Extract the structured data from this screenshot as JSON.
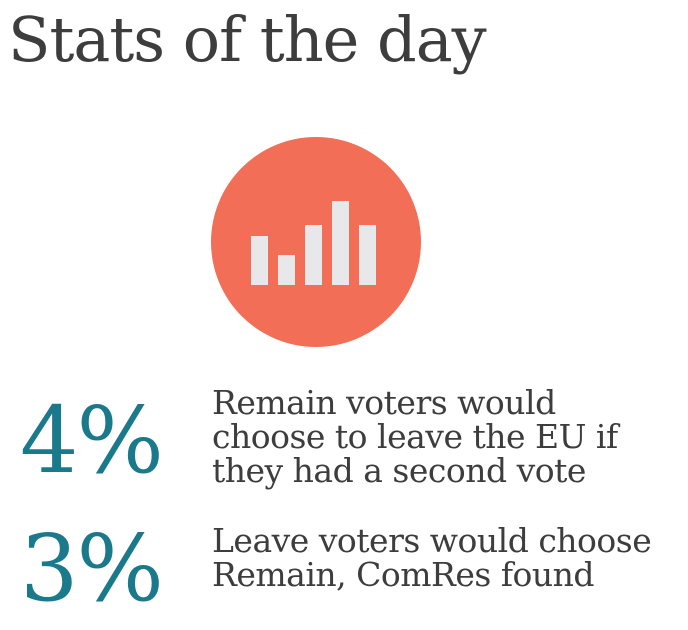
{
  "header": {
    "title": "Stats of the day"
  },
  "emblem": {
    "icon": "bar-chart-icon",
    "circle_color": "#f26e56",
    "bar_color": "#e8e8ea"
  },
  "stats": [
    {
      "value": "4%",
      "description": "Remain voters would\nchoose to leave the EU if\nthey had a second vote"
    },
    {
      "value": "3%",
      "description": "Leave voters would choose\nRemain, ComRes found"
    }
  ],
  "colors": {
    "accent": "#1a7a8c",
    "text": "#3d3d3d"
  }
}
